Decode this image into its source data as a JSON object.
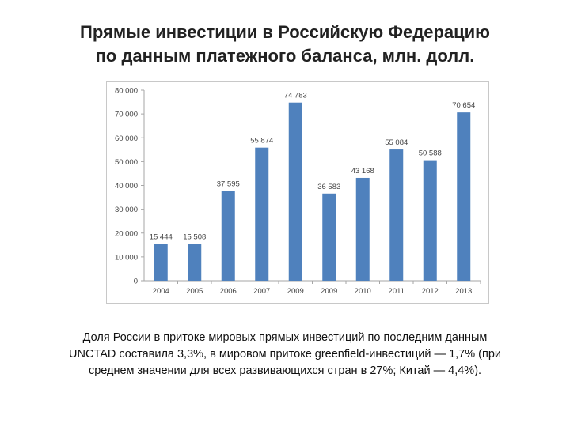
{
  "title": {
    "line1": "Прямые инвестиции в Российскую Федерацию",
    "line2": "по данным платежного баланса, млн. долл."
  },
  "caption": {
    "line1": "Доля России в притоке мировых прямых инвестиций по последним данным",
    "line2": "UNCTAD составила 3,3%, в мировом притоке greenfield-инвестиций — 1,7% (при",
    "line3": "среднем значении для всех развивающихся стран в 27%; Китай — 4,4%)."
  },
  "chart_data": {
    "type": "bar",
    "categories": [
      "2004",
      "2005",
      "2006",
      "2007",
      "2009",
      "2009",
      "2010",
      "2011",
      "2012",
      "2013"
    ],
    "values": [
      15444,
      15508,
      37595,
      55874,
      74783,
      36583,
      43168,
      55084,
      50588,
      70654
    ],
    "data_labels": [
      "15 444",
      "15 508",
      "37 595",
      "55 874",
      "74 783",
      "36 583",
      "43 168",
      "55 084",
      "50 588",
      "70 654"
    ],
    "y_ticks": [
      "0",
      "10 000",
      "20 000",
      "30 000",
      "40 000",
      "50 000",
      "60 000",
      "70 000",
      "80 000"
    ],
    "ylim": [
      0,
      80000
    ],
    "grid": false,
    "legend": "none",
    "bar_color": "#4f81bd",
    "axis_color": "#a6a6a6"
  }
}
